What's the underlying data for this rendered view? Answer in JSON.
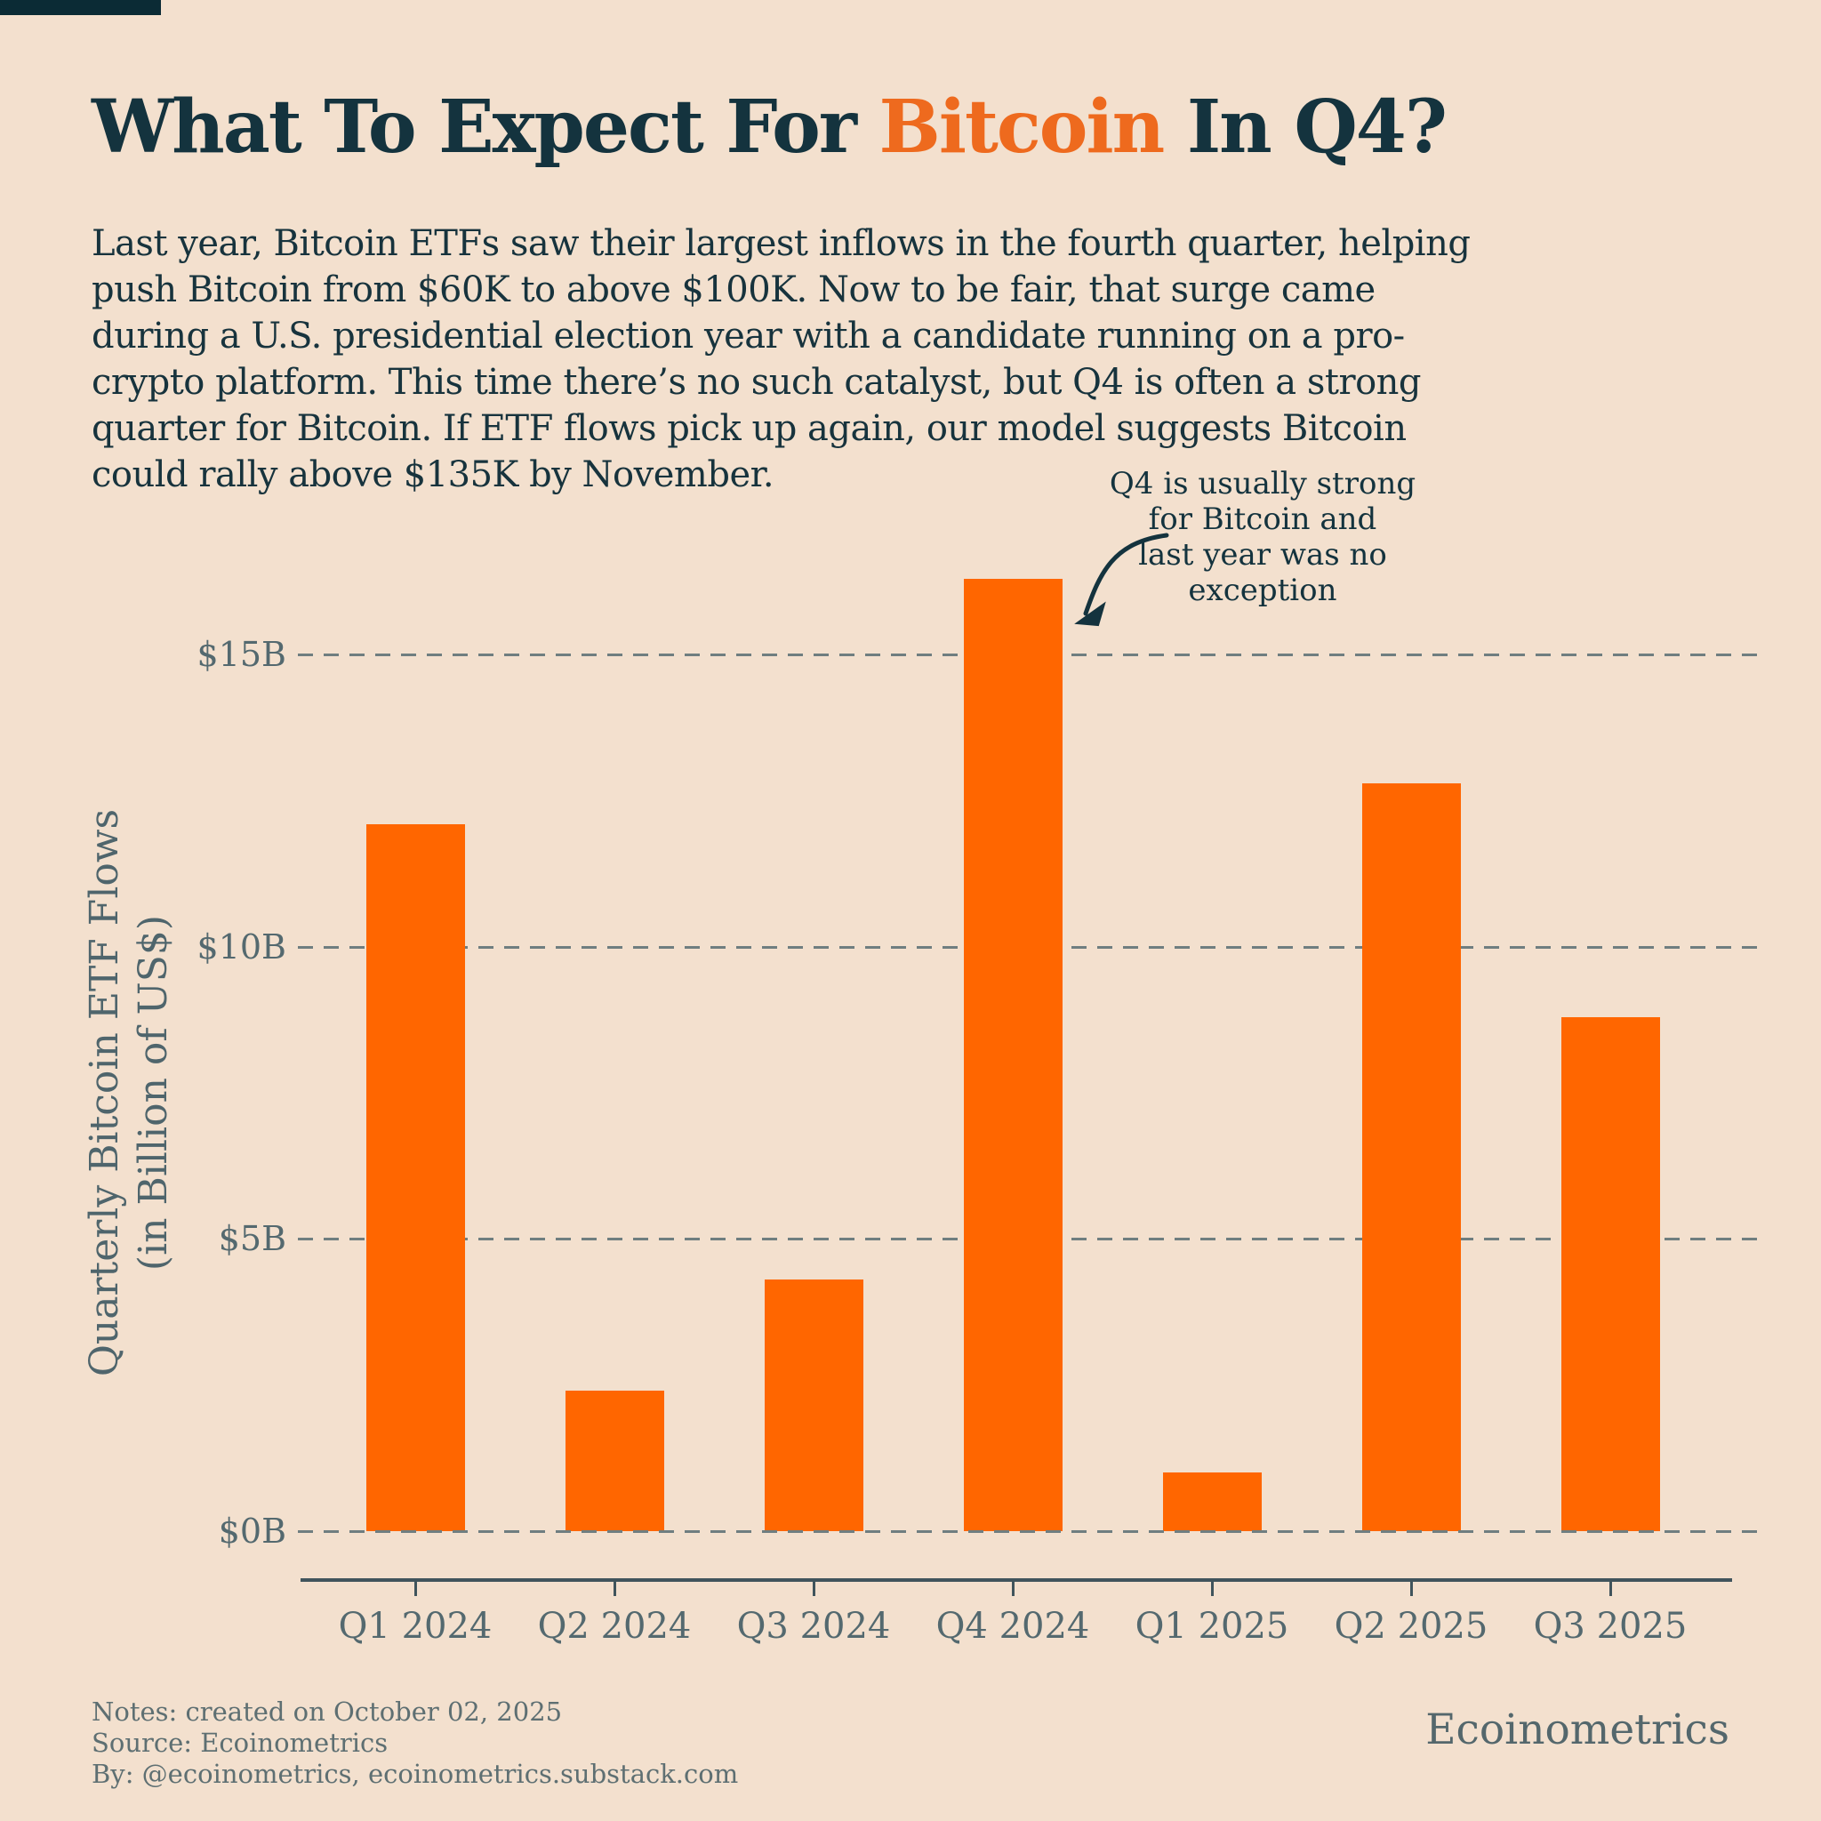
{
  "page": {
    "background_color": "#F3E0CE",
    "topbar_color": "#0B2B35"
  },
  "header": {
    "title_prefix": "What To Expect For ",
    "title_highlight": "Bitcoin",
    "title_suffix": " In Q4?",
    "title_color": "#14333E",
    "highlight_color": "#EE6A1E"
  },
  "intro": {
    "text": "Last year, Bitcoin ETFs saw their largest inflows in the fourth quarter, helping push Bitcoin from $60K to above $100K. Now to be fair, that surge came during a U.S. presidential election year with a candidate running on a pro-crypto platform. This time there’s no such catalyst, but Q4 is often a strong quarter for Bitcoin. If ETF flows pick up again, our model suggests Bitcoin could rally above $135K by November."
  },
  "chart_data": {
    "type": "bar",
    "title": "",
    "categories": [
      "Q1 2024",
      "Q2 2024",
      "Q3 2024",
      "Q4 2024",
      "Q1 2025",
      "Q2 2025",
      "Q3 2025"
    ],
    "values": [
      12.1,
      2.4,
      4.3,
      16.3,
      1.0,
      12.8,
      8.8
    ],
    "xlabel": "",
    "ylabel_line1": "Quarterly Bitcoin ETF Flows",
    "ylabel_line2": "(in Billion of US$)",
    "yticks": [
      {
        "label": "$15B",
        "value": 15
      },
      {
        "label": "$10B",
        "value": 10
      },
      {
        "label": "$5B",
        "value": 5
      },
      {
        "label": "$0B",
        "value": 0
      }
    ],
    "ylim": [
      0,
      17.3
    ],
    "grid": "horizontal-dashed",
    "grid_color": "#6F7E80",
    "bar_color": "#FF6600",
    "axis_color": "#40545C",
    "tick_label_color": "#54696F",
    "legend": "none",
    "annotation": {
      "lines": [
        "Q4 is usually strong",
        "for Bitcoin and",
        "last year was no",
        "exception"
      ],
      "arrow_target": "Q4 2024 bar top"
    }
  },
  "footer": {
    "notes_line1": "Notes: created on October 02, 2025",
    "notes_line2": "Source: Ecoinometrics",
    "notes_line3": "By: @ecoinometrics, ecoinometrics.substack.com",
    "brand": "Ecoinometrics"
  }
}
